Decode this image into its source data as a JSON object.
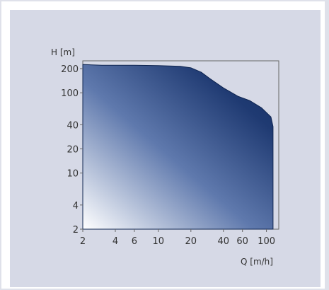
{
  "chart_data": {
    "type": "area",
    "xlabel": "Q [m/h]",
    "ylabel": "H [m]",
    "xscale": "log",
    "yscale": "log",
    "xlim": [
      2,
      130
    ],
    "ylim": [
      2,
      250
    ],
    "x_ticks": [
      2,
      4,
      6,
      10,
      20,
      40,
      60,
      100
    ],
    "x_tick_labels": [
      "2",
      "4",
      "6",
      "10",
      "20",
      "40",
      "60",
      "100"
    ],
    "y_ticks": [
      2,
      4,
      10,
      20,
      40,
      100,
      200
    ],
    "y_tick_labels": [
      "2",
      "4",
      "10",
      "20",
      "40",
      "100",
      "200"
    ],
    "envelope": {
      "x": [
        2,
        3,
        6,
        10,
        16,
        20,
        25,
        30,
        40,
        55,
        70,
        90,
        110,
        115
      ],
      "y": [
        225,
        220,
        220,
        218,
        214,
        205,
        180,
        150,
        115,
        90,
        80,
        65,
        50,
        38
      ]
    },
    "grid": false,
    "legend": "none",
    "colors": {
      "fill_dark": "#142f64",
      "fill_light": "#ffffff",
      "background": "#d6d9e6"
    }
  }
}
